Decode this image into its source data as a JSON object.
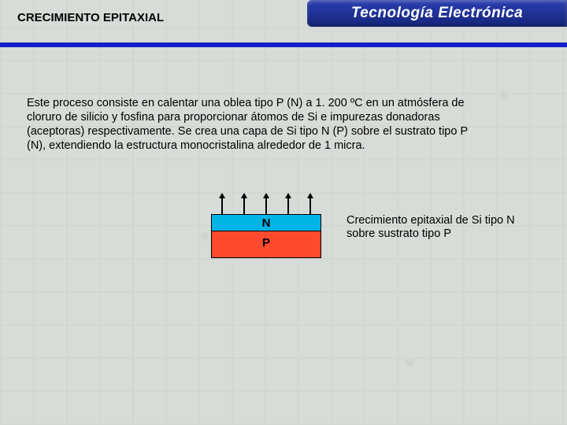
{
  "header": {
    "section_title": "CRECIMIENTO EPITAXIAL",
    "brand": "Tecnología Electrónica",
    "brand_bg": "#2a3fb0",
    "underline_color": "#1020c8"
  },
  "body": {
    "paragraph": "Este proceso consiste en calentar una oblea tipo P (N) a 1. 200 ºC en un atmósfera de cloruro de silicio y fosfina para proporcionar átomos de Si e impurezas donadoras (aceptoras) respectivamente. Se crea una capa de Si tipo N (P) sobre el sustrato tipo P (N), extendiendo la estructura monocristalina alrededor de 1 micra."
  },
  "diagram": {
    "n_label": "N",
    "p_label": "P",
    "n_color": "#00b4e6",
    "p_color": "#ff4a2e",
    "arrow_count": 5,
    "caption": "Crecimiento epitaxial de Si tipo N sobre sustrato tipo P"
  }
}
